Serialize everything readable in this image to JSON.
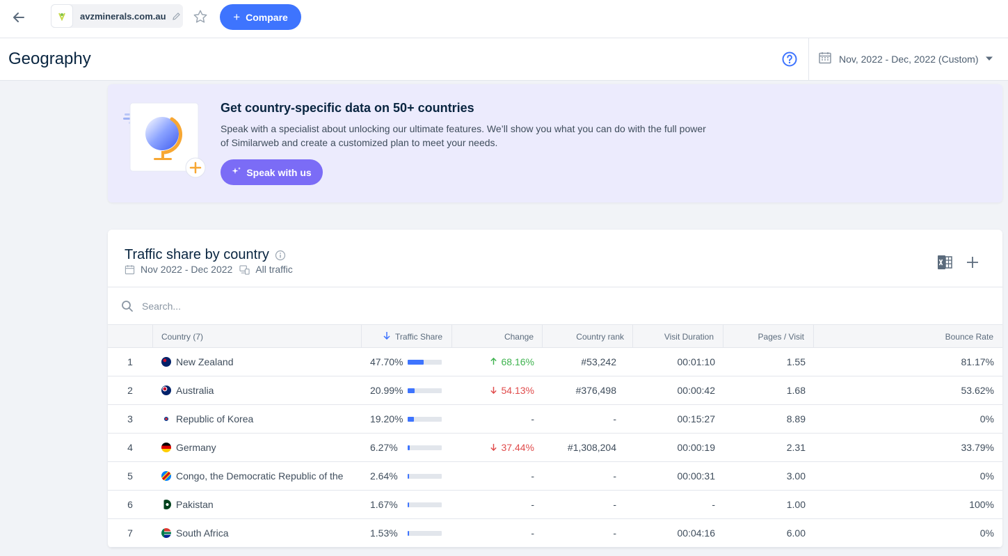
{
  "topbar": {
    "site": "avzminerals.com.au",
    "compare_label": "Compare"
  },
  "header": {
    "title": "Geography",
    "date_range": "Nov, 2022 - Dec, 2022 (Custom)"
  },
  "promo": {
    "title": "Get country-specific data on 50+ countries",
    "description_line1": "Speak with a specialist about unlocking our ultimate features. We’ll show you what you can do with the full power",
    "description_line2": "of Similarweb and create a customized plan to meet your needs.",
    "button_label": "Speak with us"
  },
  "card": {
    "title": "Traffic share by country",
    "date": "Nov 2022 - Dec 2022",
    "traffic_type": "All traffic",
    "search_placeholder": "Search..."
  },
  "table": {
    "columns": {
      "country": "Country (7)",
      "traffic_share": "Traffic Share",
      "change": "Change",
      "country_rank": "Country rank",
      "visit_duration": "Visit Duration",
      "pages_visit": "Pages / Visit",
      "bounce_rate": "Bounce Rate"
    },
    "rows": [
      {
        "rank": "1",
        "country": "New Zealand",
        "share": "47.70%",
        "share_value": 47.7,
        "change": "68.16%",
        "change_dir": "up",
        "country_rank": "#53,242",
        "duration": "00:01:10",
        "pages": "1.55",
        "bounce": "81.17%"
      },
      {
        "rank": "2",
        "country": "Australia",
        "share": "20.99%",
        "share_value": 20.99,
        "change": "54.13%",
        "change_dir": "down",
        "country_rank": "#376,498",
        "duration": "00:00:42",
        "pages": "1.68",
        "bounce": "53.62%"
      },
      {
        "rank": "3",
        "country": "Republic of Korea",
        "share": "19.20%",
        "share_value": 19.2,
        "change": "-",
        "change_dir": "none",
        "country_rank": "-",
        "duration": "00:15:27",
        "pages": "8.89",
        "bounce": "0%"
      },
      {
        "rank": "4",
        "country": "Germany",
        "share": "6.27%",
        "share_value": 6.27,
        "change": "37.44%",
        "change_dir": "down",
        "country_rank": "#1,308,204",
        "duration": "00:00:19",
        "pages": "2.31",
        "bounce": "33.79%"
      },
      {
        "rank": "5",
        "country": "Congo, the Democratic Republic of the",
        "share": "2.64%",
        "share_value": 2.64,
        "change": "-",
        "change_dir": "none",
        "country_rank": "-",
        "duration": "00:00:31",
        "pages": "3.00",
        "bounce": "0%"
      },
      {
        "rank": "6",
        "country": "Pakistan",
        "share": "1.67%",
        "share_value": 1.67,
        "change": "-",
        "change_dir": "none",
        "country_rank": "-",
        "duration": "-",
        "pages": "1.00",
        "bounce": "100%"
      },
      {
        "rank": "7",
        "country": "South Africa",
        "share": "1.53%",
        "share_value": 1.53,
        "change": "-",
        "change_dir": "none",
        "country_rank": "-",
        "duration": "00:04:16",
        "pages": "6.00",
        "bounce": "0%"
      }
    ]
  },
  "colors": {
    "accent": "#3e74fe",
    "promo_bg": "#ecebfd",
    "speak_button": "#7b6cf6",
    "positive": "#3fb34f",
    "negative": "#e04c4c"
  }
}
